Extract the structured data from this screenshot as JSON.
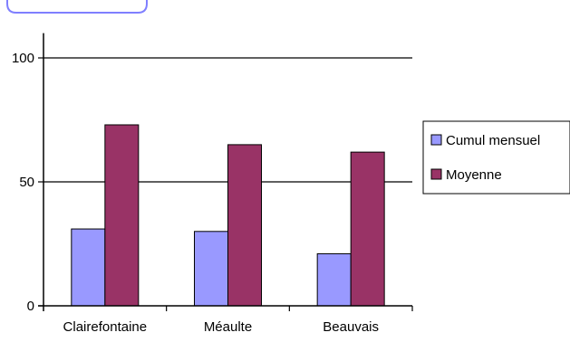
{
  "chart_data": {
    "type": "bar",
    "categories": [
      "Clairefontaine",
      "Méaulte",
      "Beauvais"
    ],
    "series": [
      {
        "name": "Cumul mensuel",
        "values": [
          31,
          30,
          21
        ],
        "color": "#9999ff"
      },
      {
        "name": "Moyenne",
        "values": [
          73,
          65,
          62
        ],
        "color": "#993366"
      }
    ],
    "ylim": [
      0,
      110
    ],
    "yticks": [
      0,
      50,
      100
    ],
    "grid": true,
    "legend_position": "right"
  }
}
